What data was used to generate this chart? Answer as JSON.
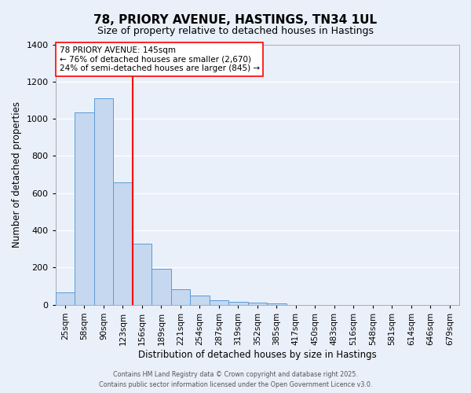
{
  "title": "78, PRIORY AVENUE, HASTINGS, TN34 1UL",
  "subtitle": "Size of property relative to detached houses in Hastings",
  "xlabel": "Distribution of detached houses by size in Hastings",
  "ylabel": "Number of detached properties",
  "categories": [
    "25sqm",
    "58sqm",
    "90sqm",
    "123sqm",
    "156sqm",
    "189sqm",
    "221sqm",
    "254sqm",
    "287sqm",
    "319sqm",
    "352sqm",
    "385sqm",
    "417sqm",
    "450sqm",
    "483sqm",
    "516sqm",
    "548sqm",
    "581sqm",
    "614sqm",
    "646sqm",
    "679sqm"
  ],
  "values": [
    65,
    1035,
    1110,
    660,
    330,
    192,
    85,
    50,
    25,
    18,
    12,
    8,
    0,
    0,
    0,
    0,
    0,
    0,
    0,
    0,
    0
  ],
  "bar_color": "#c5d8f0",
  "bar_edge_color": "#5b9bd5",
  "vline_x": 3.5,
  "vline_color": "red",
  "annotation_title": "78 PRIORY AVENUE: 145sqm",
  "annotation_line1": "← 76% of detached houses are smaller (2,670)",
  "annotation_line2": "24% of semi-detached houses are larger (845) →",
  "annotation_box_color": "white",
  "annotation_box_edge": "red",
  "ylim": [
    0,
    1400
  ],
  "yticks": [
    0,
    200,
    400,
    600,
    800,
    1000,
    1200,
    1400
  ],
  "footer1": "Contains HM Land Registry data © Crown copyright and database right 2025.",
  "footer2": "Contains public sector information licensed under the Open Government Licence v3.0.",
  "bg_color": "#eaf0fa",
  "plot_bg_color": "#eaf0fa",
  "title_fontsize": 11,
  "subtitle_fontsize": 9,
  "annotation_fontsize": 7.5,
  "xlabel_fontsize": 8.5,
  "ylabel_fontsize": 8.5,
  "xtick_fontsize": 7.5,
  "ytick_fontsize": 8
}
